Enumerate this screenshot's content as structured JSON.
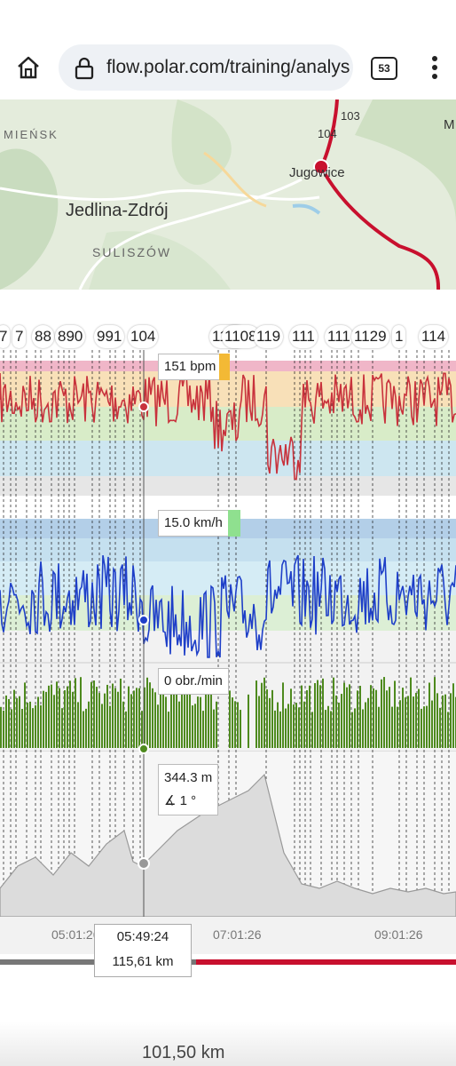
{
  "browser": {
    "url": "flow.polar.com/training/analys",
    "tab_count": "53",
    "icons": [
      "home-icon",
      "lock-icon",
      "more-vert-icon"
    ]
  },
  "map": {
    "labels": {
      "town1": "Jedlina-Zdrój",
      "town2": "SULISZÓW",
      "town3": "MIEŃSK",
      "town4": "Jugowice",
      "road1": "103",
      "road2": "104",
      "edge": "M"
    }
  },
  "markers": [
    "7",
    "7",
    "88",
    "890",
    "991",
    "104",
    "1108",
    "1108",
    "119",
    "111",
    "111",
    "1129",
    "1",
    "114"
  ],
  "tooltips": {
    "hr": "151 bpm",
    "speed": "15.0 km/h",
    "cadence": "0 obr./min",
    "altitude": "344.3 m",
    "incline": "1 °"
  },
  "axis_ticks": [
    "05:01:26",
    "07:01:26",
    "09:01:26"
  ],
  "cursor": {
    "time": "05:49:24",
    "distance": "115,61 km"
  },
  "progress_fraction": 0.43,
  "bottom_text": "101,50 km",
  "colors": {
    "hr_line": "#c8323c",
    "speed_line": "#1e3fc8",
    "cadence_line": "#4e8a1e",
    "altitude_fill": "#d6d6d6",
    "progress_active": "#c8102e",
    "progress_past": "#777777"
  },
  "chart_data": [
    {
      "type": "line",
      "name": "heart-rate",
      "unit": "bpm",
      "cursor_value": 151
    },
    {
      "type": "line",
      "name": "speed",
      "unit": "km/h",
      "cursor_value": 15.0
    },
    {
      "type": "bar",
      "name": "cadence",
      "unit": "obr./min",
      "cursor_value": 0
    },
    {
      "type": "area",
      "name": "altitude",
      "unit": "m",
      "cursor_value": 344.3,
      "incline": 1
    }
  ]
}
